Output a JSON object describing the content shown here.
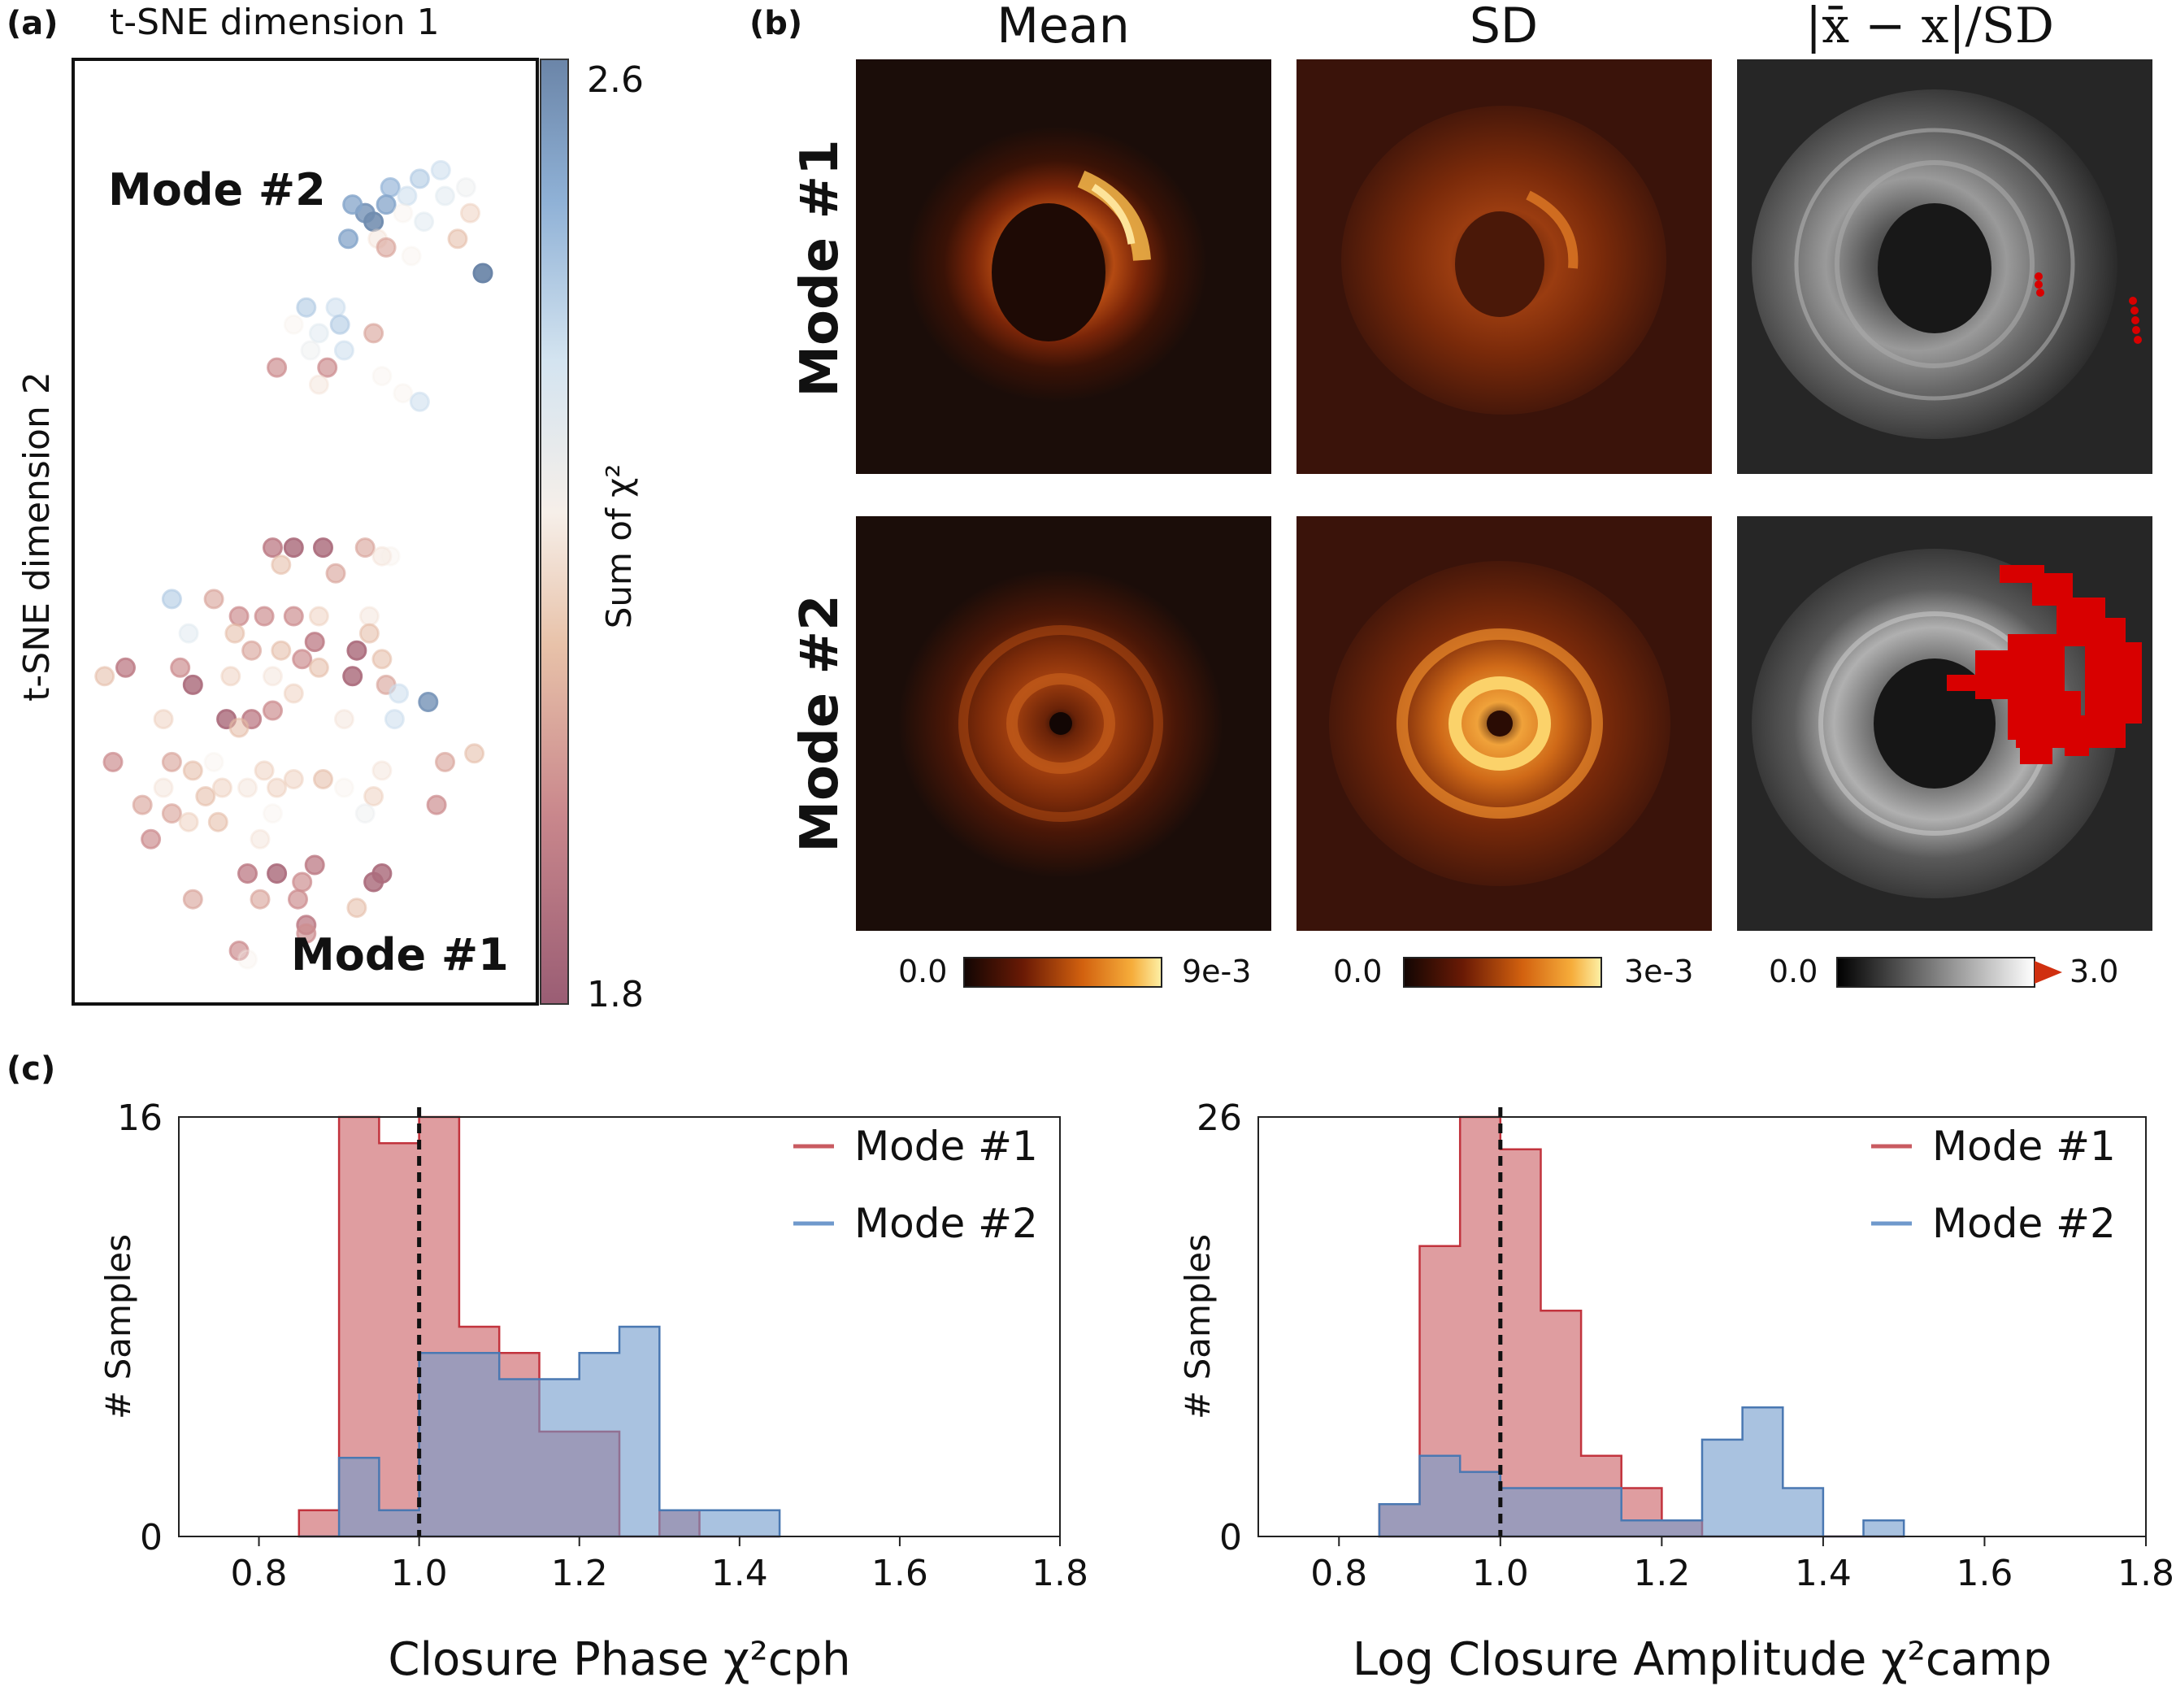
{
  "panel_labels": {
    "a": "(a)",
    "b": "(b)",
    "c": "(c)"
  },
  "panel_a": {
    "xlabel": "t-SNE dimension 1",
    "ylabel": "t-SNE dimension 2",
    "mode2_label": "Mode #2",
    "mode1_label": "Mode #1",
    "colorbar": {
      "label": "Sum of χ²",
      "max_label": "2.6",
      "min_label": "1.8",
      "colors": [
        "#9a5d74",
        "#c9878c",
        "#e8c2a9",
        "#f6efe9",
        "#d4e4f0",
        "#8fb1d6",
        "#6b85a8"
      ]
    }
  },
  "panel_b": {
    "col_titles": [
      "Mean",
      "SD",
      "|x̄ − x|/SD"
    ],
    "row_labels": [
      "Mode #1",
      "Mode #2"
    ],
    "colorbars": [
      {
        "min": "0.0",
        "max": "9e-3"
      },
      {
        "min": "0.0",
        "max": "3e-3"
      },
      {
        "min": "0.0",
        "max": "3.0"
      }
    ]
  },
  "chart_data": [
    {
      "type": "scatter",
      "title": "",
      "xlabel": "t-SNE dimension 1",
      "ylabel": "t-SNE dimension 2",
      "xlim": [
        0,
        100
      ],
      "ylim": [
        0,
        100
      ],
      "color_scale": {
        "label": "Sum of χ²",
        "min": 1.8,
        "max": 2.6
      },
      "points": [
        {
          "x": 72,
          "y": 90,
          "c": 2.45
        },
        {
          "x": 79,
          "y": 91,
          "c": 2.4
        },
        {
          "x": 84,
          "y": 92,
          "c": 2.35
        },
        {
          "x": 90,
          "y": 90,
          "c": 2.25
        },
        {
          "x": 71,
          "y": 88,
          "c": 2.5
        },
        {
          "x": 66,
          "y": 87,
          "c": 2.55
        },
        {
          "x": 63,
          "y": 88,
          "c": 2.5
        },
        {
          "x": 76,
          "y": 89,
          "c": 2.35
        },
        {
          "x": 85,
          "y": 89,
          "c": 2.3
        },
        {
          "x": 75,
          "y": 87,
          "c": 2.2
        },
        {
          "x": 68,
          "y": 86,
          "c": 2.58
        },
        {
          "x": 91,
          "y": 87,
          "c": 2.1
        },
        {
          "x": 69,
          "y": 84,
          "c": 2.15
        },
        {
          "x": 80,
          "y": 86,
          "c": 2.3
        },
        {
          "x": 88,
          "y": 84,
          "c": 2.05
        },
        {
          "x": 62,
          "y": 84,
          "c": 2.5
        },
        {
          "x": 71,
          "y": 83,
          "c": 2.0
        },
        {
          "x": 77,
          "y": 82,
          "c": 2.2
        },
        {
          "x": 94,
          "y": 80,
          "c": 2.62
        },
        {
          "x": 52,
          "y": 76,
          "c": 2.4
        },
        {
          "x": 59,
          "y": 76,
          "c": 2.35
        },
        {
          "x": 49,
          "y": 74,
          "c": 2.2
        },
        {
          "x": 55,
          "y": 73,
          "c": 2.3
        },
        {
          "x": 60,
          "y": 74,
          "c": 2.4
        },
        {
          "x": 68,
          "y": 73,
          "c": 2.0
        },
        {
          "x": 53,
          "y": 71,
          "c": 2.25
        },
        {
          "x": 61,
          "y": 71,
          "c": 2.35
        },
        {
          "x": 45,
          "y": 69,
          "c": 1.95
        },
        {
          "x": 57,
          "y": 69,
          "c": 1.95
        },
        {
          "x": 70,
          "y": 68,
          "c": 2.2
        },
        {
          "x": 55,
          "y": 67,
          "c": 2.15
        },
        {
          "x": 75,
          "y": 66,
          "c": 2.2
        },
        {
          "x": 79,
          "y": 65,
          "c": 2.35
        },
        {
          "x": 44,
          "y": 48,
          "c": 1.9
        },
        {
          "x": 49,
          "y": 48,
          "c": 1.85
        },
        {
          "x": 56,
          "y": 48,
          "c": 1.85
        },
        {
          "x": 66,
          "y": 48,
          "c": 2.0
        },
        {
          "x": 70,
          "y": 47,
          "c": 2.15
        },
        {
          "x": 72,
          "y": 47,
          "c": 2.2
        },
        {
          "x": 46,
          "y": 46,
          "c": 2.05
        },
        {
          "x": 59,
          "y": 45,
          "c": 2.0
        },
        {
          "x": 20,
          "y": 42,
          "c": 2.4
        },
        {
          "x": 30,
          "y": 42,
          "c": 2.0
        },
        {
          "x": 36,
          "y": 40,
          "c": 1.95
        },
        {
          "x": 42,
          "y": 40,
          "c": 1.95
        },
        {
          "x": 49,
          "y": 40,
          "c": 1.95
        },
        {
          "x": 55,
          "y": 40,
          "c": 2.1
        },
        {
          "x": 67,
          "y": 40,
          "c": 2.15
        },
        {
          "x": 24,
          "y": 38,
          "c": 2.3
        },
        {
          "x": 35,
          "y": 38,
          "c": 2.05
        },
        {
          "x": 67,
          "y": 38,
          "c": 2.05
        },
        {
          "x": 39,
          "y": 36,
          "c": 2.0
        },
        {
          "x": 46,
          "y": 36,
          "c": 2.05
        },
        {
          "x": 54,
          "y": 37,
          "c": 1.9
        },
        {
          "x": 51,
          "y": 35,
          "c": 1.95
        },
        {
          "x": 64,
          "y": 36,
          "c": 1.85
        },
        {
          "x": 70,
          "y": 35,
          "c": 2.05
        },
        {
          "x": 4,
          "y": 33,
          "c": 2.05
        },
        {
          "x": 9,
          "y": 34,
          "c": 1.9
        },
        {
          "x": 22,
          "y": 34,
          "c": 1.95
        },
        {
          "x": 34,
          "y": 33,
          "c": 2.1
        },
        {
          "x": 44,
          "y": 33,
          "c": 2.15
        },
        {
          "x": 55,
          "y": 34,
          "c": 2.05
        },
        {
          "x": 63,
          "y": 33,
          "c": 1.85
        },
        {
          "x": 71,
          "y": 32,
          "c": 2.0
        },
        {
          "x": 25,
          "y": 32,
          "c": 1.85
        },
        {
          "x": 49,
          "y": 31,
          "c": 2.1
        },
        {
          "x": 74,
          "y": 31,
          "c": 2.35
        },
        {
          "x": 81,
          "y": 30,
          "c": 2.55
        },
        {
          "x": 18,
          "y": 28,
          "c": 2.1
        },
        {
          "x": 33,
          "y": 28,
          "c": 1.85
        },
        {
          "x": 39,
          "y": 28,
          "c": 1.9
        },
        {
          "x": 44,
          "y": 29,
          "c": 1.95
        },
        {
          "x": 61,
          "y": 28,
          "c": 2.15
        },
        {
          "x": 73,
          "y": 28,
          "c": 2.35
        },
        {
          "x": 36,
          "y": 27,
          "c": 2.05
        },
        {
          "x": 6,
          "y": 23,
          "c": 1.95
        },
        {
          "x": 20,
          "y": 23,
          "c": 2.0
        },
        {
          "x": 25,
          "y": 22,
          "c": 2.05
        },
        {
          "x": 30,
          "y": 23,
          "c": 2.2
        },
        {
          "x": 42,
          "y": 22,
          "c": 2.1
        },
        {
          "x": 49,
          "y": 21,
          "c": 2.1
        },
        {
          "x": 56,
          "y": 21,
          "c": 2.05
        },
        {
          "x": 70,
          "y": 22,
          "c": 2.15
        },
        {
          "x": 85,
          "y": 23,
          "c": 2.0
        },
        {
          "x": 92,
          "y": 24,
          "c": 2.05
        },
        {
          "x": 18,
          "y": 20,
          "c": 2.15
        },
        {
          "x": 28,
          "y": 19,
          "c": 2.05
        },
        {
          "x": 32,
          "y": 20,
          "c": 2.1
        },
        {
          "x": 38,
          "y": 20,
          "c": 2.15
        },
        {
          "x": 45,
          "y": 20,
          "c": 2.1
        },
        {
          "x": 61,
          "y": 20,
          "c": 2.2
        },
        {
          "x": 68,
          "y": 19,
          "c": 2.1
        },
        {
          "x": 13,
          "y": 18,
          "c": 2.0
        },
        {
          "x": 20,
          "y": 17,
          "c": 2.0
        },
        {
          "x": 24,
          "y": 16,
          "c": 2.1
        },
        {
          "x": 31,
          "y": 16,
          "c": 2.05
        },
        {
          "x": 44,
          "y": 17,
          "c": 2.2
        },
        {
          "x": 66,
          "y": 17,
          "c": 2.25
        },
        {
          "x": 83,
          "y": 18,
          "c": 1.95
        },
        {
          "x": 15,
          "y": 14,
          "c": 1.95
        },
        {
          "x": 41,
          "y": 14,
          "c": 2.15
        },
        {
          "x": 38,
          "y": 10,
          "c": 1.9
        },
        {
          "x": 45,
          "y": 10,
          "c": 1.85
        },
        {
          "x": 51,
          "y": 9,
          "c": 1.95
        },
        {
          "x": 54,
          "y": 11,
          "c": 1.9
        },
        {
          "x": 68,
          "y": 9,
          "c": 1.85
        },
        {
          "x": 70,
          "y": 10,
          "c": 1.85
        },
        {
          "x": 25,
          "y": 7,
          "c": 2.0
        },
        {
          "x": 41,
          "y": 7,
          "c": 2.0
        },
        {
          "x": 50,
          "y": 7,
          "c": 1.95
        },
        {
          "x": 64,
          "y": 6,
          "c": 2.05
        },
        {
          "x": 52,
          "y": 4,
          "c": 1.9
        },
        {
          "x": 52,
          "y": 3,
          "c": 1.95
        },
        {
          "x": 36,
          "y": 1,
          "c": 1.95
        },
        {
          "x": 38,
          "y": 0,
          "c": 2.2
        }
      ]
    },
    {
      "type": "bar",
      "title": "",
      "xlabel": "Closure Phase χ²cph",
      "ylabel": "# Samples",
      "xlim": [
        0.7,
        1.8
      ],
      "ylim": [
        0,
        16
      ],
      "x_ticks": [
        "0.8",
        "1.0",
        "1.2",
        "1.4",
        "1.6",
        "1.8"
      ],
      "y_ticks": [
        "0",
        "16"
      ],
      "bin_edges": [
        0.85,
        0.9,
        0.95,
        1.0,
        1.05,
        1.1,
        1.15,
        1.2,
        1.25,
        1.3,
        1.35,
        1.4,
        1.45
      ],
      "reference_line": 1.0,
      "legend_placement": "top-right",
      "series": [
        {
          "name": "Mode #1",
          "values": [
            1,
            16,
            15,
            16,
            8,
            7,
            4,
            4,
            0,
            1,
            0,
            0
          ]
        },
        {
          "name": "Mode #2",
          "values": [
            0,
            3,
            1,
            7,
            7,
            6,
            6,
            7,
            8,
            1,
            1,
            1
          ]
        }
      ]
    },
    {
      "type": "bar",
      "title": "",
      "xlabel": "Log Closure Amplitude χ²camp",
      "ylabel": "# Samples",
      "xlim": [
        0.7,
        1.8
      ],
      "ylim": [
        0,
        26
      ],
      "x_ticks": [
        "0.8",
        "1.0",
        "1.2",
        "1.4",
        "1.6",
        "1.8"
      ],
      "y_ticks": [
        "0",
        "26"
      ],
      "bin_edges": [
        0.85,
        0.9,
        0.95,
        1.0,
        1.05,
        1.1,
        1.15,
        1.2,
        1.25,
        1.3,
        1.35,
        1.4,
        1.45,
        1.5
      ],
      "reference_line": 1.0,
      "legend_placement": "top-right",
      "series": [
        {
          "name": "Mode #1",
          "values": [
            2,
            18,
            26,
            24,
            14,
            5,
            3,
            1,
            0,
            0,
            0,
            0,
            0
          ]
        },
        {
          "name": "Mode #2",
          "values": [
            2,
            5,
            4,
            3,
            3,
            3,
            1,
            1,
            6,
            8,
            3,
            0,
            1
          ]
        }
      ]
    }
  ]
}
